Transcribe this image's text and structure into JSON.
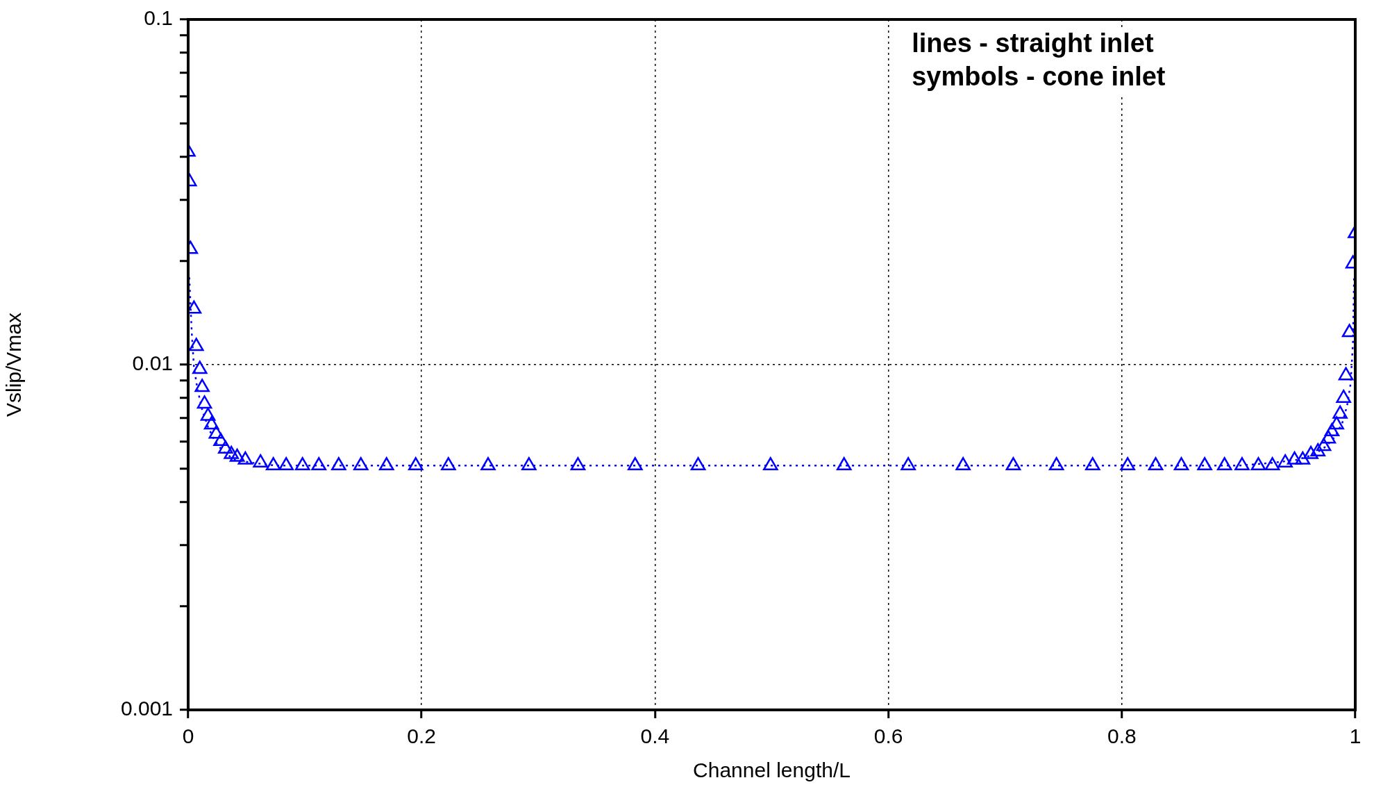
{
  "chart_data": {
    "type": "line",
    "xlabel": "Channel length/L",
    "ylabel": "Vslip/Vmax",
    "annotations": [
      "lines - straight inlet",
      "symbols - cone inlet"
    ],
    "log": "y",
    "grid": true,
    "xlim": [
      0,
      1
    ],
    "xticks": [
      0,
      0.2,
      0.4,
      0.6,
      0.8,
      1
    ],
    "ylim": [
      0.001,
      0.1
    ],
    "yticks": [
      0.001,
      {
        "value": 0.002,
        "label": null
      },
      {
        "value": 0.003,
        "label": null
      },
      {
        "value": 0.004,
        "label": null
      },
      {
        "value": 0.005,
        "label": null
      },
      {
        "value": 0.006,
        "label": null
      },
      {
        "value": 0.007,
        "label": null
      },
      {
        "value": 0.008,
        "label": null
      },
      {
        "value": 0.009,
        "label": null
      },
      0.01,
      {
        "value": 0.02,
        "label": null
      },
      {
        "value": 0.03,
        "label": null
      },
      {
        "value": 0.04,
        "label": null
      },
      {
        "value": 0.05,
        "label": null
      },
      {
        "value": 0.06,
        "label": null
      },
      {
        "value": 0.07,
        "label": null
      },
      {
        "value": 0.08,
        "label": null
      },
      {
        "value": 0.09,
        "label": null
      },
      0.1
    ],
    "series": [
      {
        "color": "#0000ff",
        "line_style": "dotted",
        "marker": "none",
        "x": [
          0.001,
          0.003,
          0.005,
          0.008,
          0.012,
          0.017,
          0.023,
          0.03,
          0.04,
          0.055,
          0.075,
          0.1,
          0.2,
          0.4,
          0.6,
          0.8,
          0.9,
          0.93,
          0.95,
          0.965,
          0.975,
          0.983,
          0.989,
          0.993,
          0.996,
          0.998,
          0.999
        ],
        "values": [
          0.0179,
          0.0125,
          0.0098,
          0.0085,
          0.0074,
          0.0066,
          0.006,
          0.0056,
          0.0053,
          0.0052,
          0.0051,
          0.0051,
          0.0051,
          0.0051,
          0.0051,
          0.0051,
          0.0051,
          0.0052,
          0.0053,
          0.0055,
          0.0058,
          0.0062,
          0.0068,
          0.0076,
          0.0088,
          0.0115,
          0.0179
        ]
      },
      {
        "type": "scatter",
        "color": "#0000ff",
        "marker": "triangle",
        "x": [
          0,
          0.001,
          0.002,
          0.005,
          0.007,
          0.01,
          0.012,
          0.014,
          0.017,
          0.02,
          0.024,
          0.028,
          0.032,
          0.037,
          0.042,
          0.049,
          0.062,
          0.073,
          0.084,
          0.098,
          0.112,
          0.129,
          0.148,
          0.17,
          0.195,
          0.223,
          0.257,
          0.292,
          0.334,
          0.383,
          0.437,
          0.499,
          0.562,
          0.617,
          0.664,
          0.707,
          0.744,
          0.775,
          0.805,
          0.829,
          0.851,
          0.871,
          0.888,
          0.903,
          0.917,
          0.929,
          0.94,
          0.948,
          0.955,
          0.962,
          0.968,
          0.973,
          0.977,
          0.98,
          0.984,
          0.987,
          0.99,
          0.992,
          0.995,
          0.998,
          1
        ],
        "values": [
          0.0413,
          0.0339,
          0.0216,
          0.0145,
          0.0113,
          0.0097,
          0.0086,
          0.0077,
          0.0071,
          0.0067,
          0.0063,
          0.006,
          0.0057,
          0.0055,
          0.0054,
          0.0053,
          0.0052,
          0.0051,
          0.0051,
          0.0051,
          0.0051,
          0.0051,
          0.0051,
          0.0051,
          0.0051,
          0.0051,
          0.0051,
          0.0051,
          0.0051,
          0.0051,
          0.0051,
          0.0051,
          0.0051,
          0.0051,
          0.0051,
          0.0051,
          0.0051,
          0.0051,
          0.0051,
          0.0051,
          0.0051,
          0.0051,
          0.0051,
          0.0051,
          0.0051,
          0.0051,
          0.0052,
          0.0053,
          0.0053,
          0.0055,
          0.0056,
          0.0058,
          0.0061,
          0.0064,
          0.0067,
          0.0072,
          0.008,
          0.0093,
          0.0124,
          0.0196,
          0.024
        ]
      }
    ]
  }
}
